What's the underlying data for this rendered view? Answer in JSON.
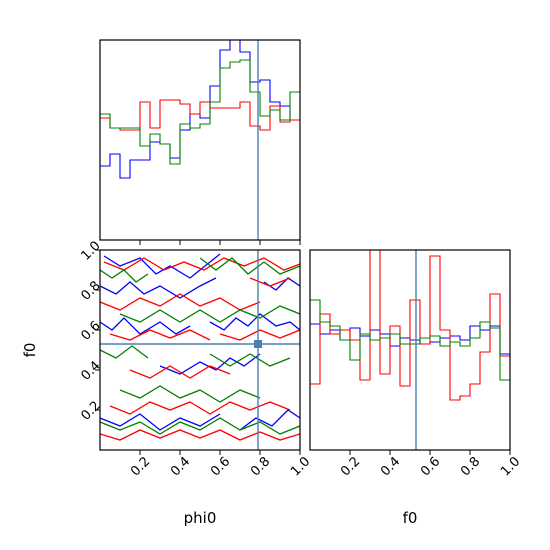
{
  "chart_data": {
    "type": "corner",
    "parameters": [
      "phi0",
      "f0"
    ],
    "truth": {
      "phi0": 0.79,
      "f0": 0.53
    },
    "colors": {
      "series_1": "#0000ff",
      "series_2": "#ff0000",
      "series_3": "#008000",
      "truth": "#4a7fb0"
    },
    "ticks": {
      "phi0": [
        "0.2",
        "0.4",
        "0.6",
        "0.8",
        "1.0"
      ],
      "f0": [
        "0.2",
        "0.4",
        "0.6",
        "0.8",
        "1.0"
      ]
    },
    "tick_values": [
      0.2,
      0.4,
      0.6,
      0.8,
      1.0
    ],
    "xlim": [
      0,
      1
    ],
    "hist_phi0": {
      "bin_edges": [
        0,
        0.05,
        0.1,
        0.15,
        0.2,
        0.25,
        0.3,
        0.35,
        0.4,
        0.45,
        0.5,
        0.55,
        0.6,
        0.65,
        0.7,
        0.75,
        0.8,
        0.85,
        0.9,
        0.95,
        1.0
      ],
      "ymax": 1.0,
      "series": [
        {
          "color": "blue",
          "values": [
            0.37,
            0.43,
            0.31,
            0.4,
            0.4,
            0.49,
            0.48,
            0.41,
            0.55,
            0.63,
            0.61,
            0.77,
            0.95,
            1.05,
            0.94,
            0.79,
            0.8,
            0.69,
            0.67,
            0.6
          ]
        },
        {
          "color": "red",
          "values": [
            0.61,
            0.56,
            0.55,
            0.55,
            0.69,
            0.56,
            0.7,
            0.7,
            0.68,
            0.63,
            0.69,
            0.66,
            0.66,
            0.66,
            0.69,
            0.57,
            0.55,
            0.67,
            0.59,
            0.6
          ]
        },
        {
          "color": "green",
          "values": [
            0.63,
            0.56,
            0.56,
            0.56,
            0.47,
            0.53,
            0.48,
            0.38,
            0.58,
            0.56,
            0.58,
            0.69,
            0.86,
            0.89,
            0.9,
            0.74,
            0.62,
            0.65,
            0.6,
            0.74
          ]
        }
      ]
    },
    "hist_f0": {
      "bin_edges": [
        0,
        0.05,
        0.1,
        0.15,
        0.2,
        0.25,
        0.3,
        0.35,
        0.4,
        0.45,
        0.5,
        0.55,
        0.6,
        0.65,
        0.7,
        0.75,
        0.8,
        0.85,
        0.9,
        0.95,
        1.0
      ],
      "ymax": 1.0,
      "series": [
        {
          "color": "blue",
          "values": [
            0.63,
            0.58,
            0.6,
            0.55,
            0.61,
            0.57,
            0.6,
            0.58,
            0.52,
            0.56,
            0.55,
            0.53,
            0.54,
            0.56,
            0.57,
            0.55,
            0.62,
            0.6,
            0.62,
            0.48
          ]
        },
        {
          "color": "red",
          "values": [
            0.33,
            0.68,
            0.58,
            0.6,
            0.55,
            0.35,
            1.0,
            0.38,
            0.62,
            0.32,
            0.75,
            0.53,
            0.97,
            0.6,
            0.25,
            0.27,
            0.33,
            0.49,
            0.78,
            0.47
          ]
        },
        {
          "color": "green",
          "values": [
            0.75,
            0.64,
            0.62,
            0.55,
            0.45,
            0.58,
            0.55,
            0.56,
            0.58,
            0.53,
            0.53,
            0.56,
            0.57,
            0.52,
            0.54,
            0.52,
            0.56,
            0.64,
            0.61,
            0.35
          ]
        }
      ]
    },
    "contours_phi0_f0": {
      "xlabel": "phi0",
      "ylabel": "f0",
      "series": [
        {
          "color": "blue",
          "lines": [
            [
              [
                0.02,
                0.97
              ],
              [
                0.1,
                0.92
              ],
              [
                0.2,
                0.96
              ],
              [
                0.28,
                0.88
              ],
              [
                0.35,
                0.92
              ],
              [
                0.45,
                0.86
              ],
              [
                0.55,
                0.94
              ],
              [
                0.6,
                0.98
              ]
            ],
            [
              [
                0.0,
                0.82
              ],
              [
                0.08,
                0.78
              ],
              [
                0.15,
                0.84
              ],
              [
                0.22,
                0.78
              ],
              [
                0.3,
                0.82
              ],
              [
                0.4,
                0.76
              ],
              [
                0.5,
                0.82
              ],
              [
                0.58,
                0.86
              ]
            ],
            [
              [
                0.0,
                0.64
              ],
              [
                0.06,
                0.6
              ],
              [
                0.12,
                0.66
              ],
              [
                0.2,
                0.58
              ],
              [
                0.3,
                0.64
              ],
              [
                0.38,
                0.58
              ],
              [
                0.45,
                0.62
              ]
            ],
            [
              [
                0.55,
                0.64
              ],
              [
                0.62,
                0.6
              ],
              [
                0.68,
                0.66
              ],
              [
                0.74,
                0.62
              ],
              [
                0.8,
                0.68
              ],
              [
                0.88,
                0.62
              ],
              [
                0.95,
                0.64
              ],
              [
                1.0,
                0.6
              ]
            ],
            [
              [
                0.3,
                0.42
              ],
              [
                0.4,
                0.38
              ],
              [
                0.5,
                0.44
              ],
              [
                0.58,
                0.4
              ],
              [
                0.65,
                0.46
              ],
              [
                0.72,
                0.42
              ],
              [
                0.8,
                0.48
              ]
            ],
            [
              [
                0.0,
                0.16
              ],
              [
                0.1,
                0.12
              ],
              [
                0.2,
                0.18
              ],
              [
                0.3,
                0.1
              ],
              [
                0.4,
                0.16
              ],
              [
                0.5,
                0.12
              ],
              [
                0.6,
                0.18
              ]
            ],
            [
              [
                0.7,
                0.1
              ],
              [
                0.78,
                0.16
              ],
              [
                0.86,
                0.12
              ],
              [
                0.94,
                0.2
              ],
              [
                1.0,
                0.16
              ]
            ],
            [
              [
                0.82,
                0.84
              ],
              [
                0.88,
                0.8
              ],
              [
                0.94,
                0.86
              ],
              [
                1.0,
                0.82
              ]
            ]
          ]
        },
        {
          "color": "red",
          "lines": [
            [
              [
                0.02,
                0.94
              ],
              [
                0.12,
                0.9
              ],
              [
                0.22,
                0.96
              ],
              [
                0.32,
                0.9
              ],
              [
                0.42,
                0.94
              ],
              [
                0.52,
                0.9
              ],
              [
                0.62,
                0.96
              ],
              [
                0.72,
                0.92
              ],
              [
                0.82,
                0.96
              ],
              [
                0.92,
                0.9
              ],
              [
                1.0,
                0.93
              ]
            ],
            [
              [
                0.0,
                0.74
              ],
              [
                0.1,
                0.7
              ],
              [
                0.2,
                0.76
              ],
              [
                0.3,
                0.72
              ],
              [
                0.4,
                0.78
              ],
              [
                0.5,
                0.72
              ],
              [
                0.6,
                0.76
              ],
              [
                0.7,
                0.7
              ],
              [
                0.8,
                0.74
              ]
            ],
            [
              [
                0.05,
                0.58
              ],
              [
                0.15,
                0.55
              ],
              [
                0.25,
                0.6
              ],
              [
                0.35,
                0.56
              ],
              [
                0.45,
                0.6
              ],
              [
                0.55,
                0.55
              ]
            ],
            [
              [
                0.6,
                0.58
              ],
              [
                0.7,
                0.55
              ],
              [
                0.8,
                0.6
              ],
              [
                0.9,
                0.56
              ],
              [
                1.0,
                0.6
              ]
            ],
            [
              [
                0.15,
                0.4
              ],
              [
                0.25,
                0.36
              ],
              [
                0.35,
                0.42
              ],
              [
                0.45,
                0.36
              ],
              [
                0.55,
                0.42
              ],
              [
                0.65,
                0.38
              ]
            ],
            [
              [
                0.05,
                0.22
              ],
              [
                0.15,
                0.18
              ],
              [
                0.25,
                0.24
              ],
              [
                0.35,
                0.2
              ],
              [
                0.45,
                0.24
              ],
              [
                0.55,
                0.18
              ],
              [
                0.65,
                0.24
              ],
              [
                0.75,
                0.2
              ],
              [
                0.85,
                0.24
              ],
              [
                0.95,
                0.2
              ]
            ],
            [
              [
                0.0,
                0.08
              ],
              [
                0.1,
                0.05
              ],
              [
                0.2,
                0.1
              ],
              [
                0.3,
                0.06
              ],
              [
                0.4,
                0.1
              ],
              [
                0.5,
                0.06
              ],
              [
                0.6,
                0.1
              ],
              [
                0.7,
                0.05
              ],
              [
                0.8,
                0.09
              ],
              [
                0.9,
                0.05
              ],
              [
                1.0,
                0.08
              ]
            ],
            [
              [
                0.75,
                0.86
              ],
              [
                0.85,
                0.82
              ],
              [
                0.95,
                0.86
              ]
            ]
          ]
        },
        {
          "color": "green",
          "lines": [
            [
              [
                0.0,
                0.9
              ],
              [
                0.06,
                0.86
              ],
              [
                0.12,
                0.9
              ],
              [
                0.18,
                0.84
              ],
              [
                0.24,
                0.88
              ]
            ],
            [
              [
                0.5,
                0.96
              ],
              [
                0.58,
                0.9
              ],
              [
                0.66,
                0.96
              ],
              [
                0.74,
                0.88
              ],
              [
                0.82,
                0.94
              ],
              [
                0.9,
                0.88
              ],
              [
                1.0,
                0.92
              ]
            ],
            [
              [
                0.1,
                0.68
              ],
              [
                0.2,
                0.64
              ],
              [
                0.3,
                0.7
              ],
              [
                0.4,
                0.64
              ],
              [
                0.5,
                0.7
              ],
              [
                0.6,
                0.64
              ],
              [
                0.7,
                0.7
              ],
              [
                0.8,
                0.66
              ],
              [
                0.9,
                0.72
              ],
              [
                1.0,
                0.68
              ]
            ],
            [
              [
                0.0,
                0.5
              ],
              [
                0.08,
                0.46
              ],
              [
                0.16,
                0.52
              ],
              [
                0.24,
                0.46
              ]
            ],
            [
              [
                0.55,
                0.48
              ],
              [
                0.65,
                0.42
              ],
              [
                0.75,
                0.48
              ],
              [
                0.85,
                0.42
              ],
              [
                0.95,
                0.46
              ]
            ],
            [
              [
                0.1,
                0.3
              ],
              [
                0.2,
                0.26
              ],
              [
                0.3,
                0.32
              ],
              [
                0.4,
                0.26
              ],
              [
                0.5,
                0.3
              ],
              [
                0.6,
                0.24
              ],
              [
                0.7,
                0.3
              ],
              [
                0.8,
                0.26
              ]
            ],
            [
              [
                0.0,
                0.14
              ],
              [
                0.1,
                0.1
              ],
              [
                0.2,
                0.14
              ],
              [
                0.3,
                0.08
              ],
              [
                0.4,
                0.14
              ],
              [
                0.5,
                0.1
              ],
              [
                0.6,
                0.16
              ],
              [
                0.7,
                0.1
              ],
              [
                0.8,
                0.14
              ],
              [
                0.9,
                0.08
              ],
              [
                1.0,
                0.12
              ]
            ]
          ]
        }
      ]
    },
    "xlabels": {
      "left": "phi0",
      "right": "f0"
    },
    "ylabel": "f0"
  }
}
